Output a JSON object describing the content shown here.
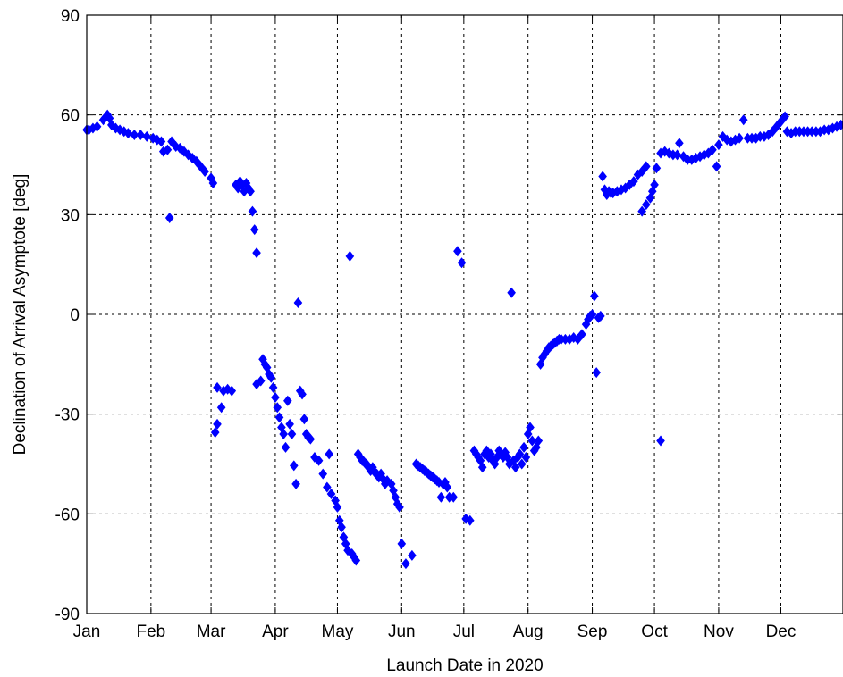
{
  "chart_data": {
    "type": "scatter",
    "title": "",
    "xlabel": "Launch Date in 2020",
    "ylabel": "Declination of Arrival Asymptote [deg]",
    "xlim": [
      "2020-01-01",
      "2020-12-31"
    ],
    "ylim": [
      -90,
      90
    ],
    "x_tick_labels": [
      "Jan",
      "Feb",
      "Mar",
      "Apr",
      "May",
      "Jun",
      "Jul",
      "Aug",
      "Sep",
      "Oct",
      "Nov",
      "Dec"
    ],
    "x_tick_dates": [
      "2020-01-01",
      "2020-02-01",
      "2020-03-01",
      "2020-04-01",
      "2020-05-01",
      "2020-06-01",
      "2020-07-01",
      "2020-08-01",
      "2020-09-01",
      "2020-10-01",
      "2020-11-01",
      "2020-12-01"
    ],
    "y_ticks": [
      -90,
      -60,
      -30,
      0,
      30,
      60,
      90
    ],
    "y_tick_labels": [
      "-90",
      "-60",
      "-30",
      "0",
      "30",
      "60",
      "90"
    ],
    "grid": true,
    "marker": "diamond",
    "marker_color": "#0000ff",
    "series": [
      {
        "points": [
          [
            "2020-01-01",
            55.5
          ],
          [
            "2020-01-02",
            55.5
          ],
          [
            "2020-01-04",
            56
          ],
          [
            "2020-01-06",
            56.5
          ],
          [
            "2020-01-09",
            58.5
          ],
          [
            "2020-01-11",
            60
          ],
          [
            "2020-01-12",
            59
          ],
          [
            "2020-01-13",
            57
          ],
          [
            "2020-01-15",
            56
          ],
          [
            "2020-01-17",
            55.5
          ],
          [
            "2020-01-19",
            55
          ],
          [
            "2020-01-21",
            54.5
          ],
          [
            "2020-01-24",
            54
          ],
          [
            "2020-01-27",
            54
          ],
          [
            "2020-01-30",
            53.5
          ],
          [
            "2020-02-02",
            53
          ],
          [
            "2020-02-04",
            52.5
          ],
          [
            "2020-02-06",
            52
          ],
          [
            "2020-02-07",
            49
          ],
          [
            "2020-02-09",
            49.5
          ],
          [
            "2020-02-10",
            29
          ],
          [
            "2020-02-11",
            52
          ],
          [
            "2020-02-13",
            50.5
          ],
          [
            "2020-02-15",
            50
          ],
          [
            "2020-02-17",
            49
          ],
          [
            "2020-02-19",
            48
          ],
          [
            "2020-02-21",
            47
          ],
          [
            "2020-02-23",
            46
          ],
          [
            "2020-02-25",
            44.5
          ],
          [
            "2020-02-27",
            43
          ],
          [
            "2020-03-01",
            41
          ],
          [
            "2020-03-02",
            39.5
          ],
          [
            "2020-03-13",
            39
          ],
          [
            "2020-03-14",
            38
          ],
          [
            "2020-03-15",
            40
          ],
          [
            "2020-03-16",
            39
          ],
          [
            "2020-03-17",
            37
          ],
          [
            "2020-03-18",
            39.5
          ],
          [
            "2020-03-19",
            38
          ],
          [
            "2020-03-20",
            37
          ],
          [
            "2020-03-21",
            31
          ],
          [
            "2020-03-22",
            25.5
          ],
          [
            "2020-03-23",
            18.5
          ],
          [
            "2020-03-03",
            -35.5
          ],
          [
            "2020-03-04",
            -33
          ],
          [
            "2020-03-04",
            -22
          ],
          [
            "2020-03-06",
            -28
          ],
          [
            "2020-03-07",
            -23
          ],
          [
            "2020-03-09",
            -22.5
          ],
          [
            "2020-03-11",
            -23
          ],
          [
            "2020-03-23",
            -21
          ],
          [
            "2020-03-25",
            -20
          ],
          [
            "2020-03-26",
            -13.5
          ],
          [
            "2020-03-27",
            -15
          ],
          [
            "2020-03-28",
            -16
          ],
          [
            "2020-03-29",
            -18
          ],
          [
            "2020-03-30",
            -19
          ],
          [
            "2020-03-31",
            -22
          ],
          [
            "2020-04-01",
            -25
          ],
          [
            "2020-04-02",
            -28
          ],
          [
            "2020-04-03",
            -31
          ],
          [
            "2020-04-04",
            -34
          ],
          [
            "2020-04-05",
            -36
          ],
          [
            "2020-04-06",
            -40
          ],
          [
            "2020-04-07",
            -26
          ],
          [
            "2020-04-08",
            -33
          ],
          [
            "2020-04-09",
            -36
          ],
          [
            "2020-04-10",
            -45.5
          ],
          [
            "2020-04-11",
            -51
          ],
          [
            "2020-04-12",
            3.5
          ],
          [
            "2020-04-13",
            -23
          ],
          [
            "2020-04-14",
            -24
          ],
          [
            "2020-04-15",
            -31.5
          ],
          [
            "2020-04-16",
            -36
          ],
          [
            "2020-04-17",
            -37
          ],
          [
            "2020-04-18",
            -37.5
          ],
          [
            "2020-04-20",
            -43
          ],
          [
            "2020-04-22",
            -44
          ],
          [
            "2020-04-24",
            -48
          ],
          [
            "2020-04-26",
            -52
          ],
          [
            "2020-04-27",
            -42
          ],
          [
            "2020-04-28",
            -54
          ],
          [
            "2020-04-30",
            -56
          ],
          [
            "2020-05-01",
            -58
          ],
          [
            "2020-05-02",
            -62
          ],
          [
            "2020-05-03",
            -64
          ],
          [
            "2020-05-04",
            -67
          ],
          [
            "2020-05-05",
            -69
          ],
          [
            "2020-05-06",
            -71
          ],
          [
            "2020-05-07",
            17.5
          ],
          [
            "2020-05-08",
            -72
          ],
          [
            "2020-05-09",
            -73
          ],
          [
            "2020-05-10",
            -74
          ],
          [
            "2020-05-11",
            -42
          ],
          [
            "2020-05-12",
            -43
          ],
          [
            "2020-05-13",
            -44
          ],
          [
            "2020-05-14",
            -44.5
          ],
          [
            "2020-05-15",
            -45
          ],
          [
            "2020-05-16",
            -46
          ],
          [
            "2020-05-17",
            -47
          ],
          [
            "2020-05-18",
            -46
          ],
          [
            "2020-05-19",
            -47.5
          ],
          [
            "2020-05-20",
            -48
          ],
          [
            "2020-05-21",
            -49
          ],
          [
            "2020-05-22",
            -48
          ],
          [
            "2020-05-23",
            -49.5
          ],
          [
            "2020-05-24",
            -51
          ],
          [
            "2020-05-25",
            -50
          ],
          [
            "2020-05-27",
            -51
          ],
          [
            "2020-05-28",
            -53
          ],
          [
            "2020-05-29",
            -55
          ],
          [
            "2020-05-30",
            -57
          ],
          [
            "2020-05-31",
            -58
          ],
          [
            "2020-06-01",
            -69
          ],
          [
            "2020-06-03",
            -75
          ],
          [
            "2020-06-06",
            -72.5
          ],
          [
            "2020-06-08",
            -45
          ],
          [
            "2020-06-09",
            -45.5
          ],
          [
            "2020-06-10",
            -46
          ],
          [
            "2020-06-11",
            -46.5
          ],
          [
            "2020-06-12",
            -47
          ],
          [
            "2020-06-13",
            -47.5
          ],
          [
            "2020-06-14",
            -48
          ],
          [
            "2020-06-15",
            -48.5
          ],
          [
            "2020-06-16",
            -49
          ],
          [
            "2020-06-17",
            -49.5
          ],
          [
            "2020-06-18",
            -50
          ],
          [
            "2020-06-19",
            -50.5
          ],
          [
            "2020-06-20",
            -55
          ],
          [
            "2020-06-21",
            -51
          ],
          [
            "2020-06-22",
            -50.5
          ],
          [
            "2020-06-23",
            -52
          ],
          [
            "2020-06-24",
            -55
          ],
          [
            "2020-06-26",
            -55
          ],
          [
            "2020-06-28",
            19
          ],
          [
            "2020-06-30",
            15.5
          ],
          [
            "2020-07-02",
            -61.5
          ],
          [
            "2020-07-04",
            -62
          ],
          [
            "2020-07-06",
            -41
          ],
          [
            "2020-07-07",
            -42
          ],
          [
            "2020-07-08",
            -43
          ],
          [
            "2020-07-09",
            -44
          ],
          [
            "2020-07-10",
            -46
          ],
          [
            "2020-07-11",
            -42
          ],
          [
            "2020-07-12",
            -41
          ],
          [
            "2020-07-13",
            -43
          ],
          [
            "2020-07-14",
            -42
          ],
          [
            "2020-07-15",
            -44
          ],
          [
            "2020-07-16",
            -45
          ],
          [
            "2020-07-17",
            -43
          ],
          [
            "2020-07-18",
            -41
          ],
          [
            "2020-07-19",
            -42
          ],
          [
            "2020-07-20",
            -43
          ],
          [
            "2020-07-21",
            -41.5
          ],
          [
            "2020-07-22",
            -43
          ],
          [
            "2020-07-23",
            -45
          ],
          [
            "2020-07-24",
            6.5
          ],
          [
            "2020-07-25",
            -44
          ],
          [
            "2020-07-26",
            -46
          ],
          [
            "2020-07-27",
            -43
          ],
          [
            "2020-07-28",
            -42
          ],
          [
            "2020-07-29",
            -45
          ],
          [
            "2020-07-30",
            -40
          ],
          [
            "2020-07-31",
            -43
          ],
          [
            "2020-08-01",
            -36
          ],
          [
            "2020-08-02",
            -34
          ],
          [
            "2020-08-03",
            -38
          ],
          [
            "2020-08-04",
            -41
          ],
          [
            "2020-08-05",
            -40
          ],
          [
            "2020-08-06",
            -38
          ],
          [
            "2020-08-07",
            -15
          ],
          [
            "2020-08-08",
            -13
          ],
          [
            "2020-08-09",
            -12
          ],
          [
            "2020-08-10",
            -11
          ],
          [
            "2020-08-11",
            -10
          ],
          [
            "2020-08-12",
            -9.5
          ],
          [
            "2020-08-13",
            -9
          ],
          [
            "2020-08-14",
            -8.5
          ],
          [
            "2020-08-15",
            -8
          ],
          [
            "2020-08-16",
            -7.5
          ],
          [
            "2020-08-17",
            -7.5
          ],
          [
            "2020-08-19",
            -7.5
          ],
          [
            "2020-08-21",
            -7.5
          ],
          [
            "2020-08-23",
            -7
          ],
          [
            "2020-08-25",
            -7.5
          ],
          [
            "2020-08-27",
            -6
          ],
          [
            "2020-08-29",
            -3
          ],
          [
            "2020-08-30",
            -1.5
          ],
          [
            "2020-08-31",
            -0.5
          ],
          [
            "2020-09-01",
            0
          ],
          [
            "2020-09-02",
            5.5
          ],
          [
            "2020-09-03",
            -17.5
          ],
          [
            "2020-09-04",
            -1
          ],
          [
            "2020-09-05",
            -0.5
          ],
          [
            "2020-09-06",
            41.5
          ],
          [
            "2020-09-07",
            37.5
          ],
          [
            "2020-09-08",
            36
          ],
          [
            "2020-09-09",
            37
          ],
          [
            "2020-09-10",
            36.5
          ],
          [
            "2020-09-11",
            36.5
          ],
          [
            "2020-09-13",
            37
          ],
          [
            "2020-09-15",
            37.5
          ],
          [
            "2020-09-17",
            38
          ],
          [
            "2020-09-19",
            39
          ],
          [
            "2020-09-21",
            40
          ],
          [
            "2020-09-23",
            42
          ],
          [
            "2020-09-25",
            43
          ],
          [
            "2020-09-27",
            44.5
          ],
          [
            "2020-09-25",
            31
          ],
          [
            "2020-09-27",
            33
          ],
          [
            "2020-09-29",
            35
          ],
          [
            "2020-09-30",
            37
          ],
          [
            "2020-10-01",
            39
          ],
          [
            "2020-10-02",
            44
          ],
          [
            "2020-10-04",
            48.5
          ],
          [
            "2020-10-06",
            49
          ],
          [
            "2020-10-04",
            -38
          ],
          [
            "2020-10-08",
            48.5
          ],
          [
            "2020-10-10",
            48
          ],
          [
            "2020-10-12",
            48
          ],
          [
            "2020-10-13",
            51.5
          ],
          [
            "2020-10-15",
            47.5
          ],
          [
            "2020-10-17",
            46.5
          ],
          [
            "2020-10-19",
            46.5
          ],
          [
            "2020-10-21",
            47
          ],
          [
            "2020-10-23",
            47.5
          ],
          [
            "2020-10-25",
            48
          ],
          [
            "2020-10-27",
            48.5
          ],
          [
            "2020-10-29",
            49.5
          ],
          [
            "2020-10-31",
            44.5
          ],
          [
            "2020-11-01",
            51
          ],
          [
            "2020-11-03",
            53.5
          ],
          [
            "2020-11-05",
            52.5
          ],
          [
            "2020-11-07",
            52
          ],
          [
            "2020-11-09",
            52.5
          ],
          [
            "2020-11-11",
            53
          ],
          [
            "2020-11-13",
            58.5
          ],
          [
            "2020-11-15",
            53
          ],
          [
            "2020-11-17",
            53
          ],
          [
            "2020-11-19",
            53
          ],
          [
            "2020-11-21",
            53.5
          ],
          [
            "2020-11-23",
            53.5
          ],
          [
            "2020-11-25",
            54
          ],
          [
            "2020-11-27",
            55
          ],
          [
            "2020-11-29",
            56.5
          ],
          [
            "2020-12-01",
            58
          ],
          [
            "2020-12-03",
            59.5
          ],
          [
            "2020-12-04",
            55
          ],
          [
            "2020-12-06",
            54.5
          ],
          [
            "2020-12-08",
            55
          ],
          [
            "2020-12-10",
            55
          ],
          [
            "2020-12-12",
            55
          ],
          [
            "2020-12-14",
            55
          ],
          [
            "2020-12-16",
            55
          ],
          [
            "2020-12-18",
            55
          ],
          [
            "2020-12-20",
            55
          ],
          [
            "2020-12-22",
            55.5
          ],
          [
            "2020-12-24",
            55.5
          ],
          [
            "2020-12-26",
            56
          ],
          [
            "2020-12-28",
            56.5
          ],
          [
            "2020-12-30",
            57
          ]
        ]
      }
    ]
  }
}
